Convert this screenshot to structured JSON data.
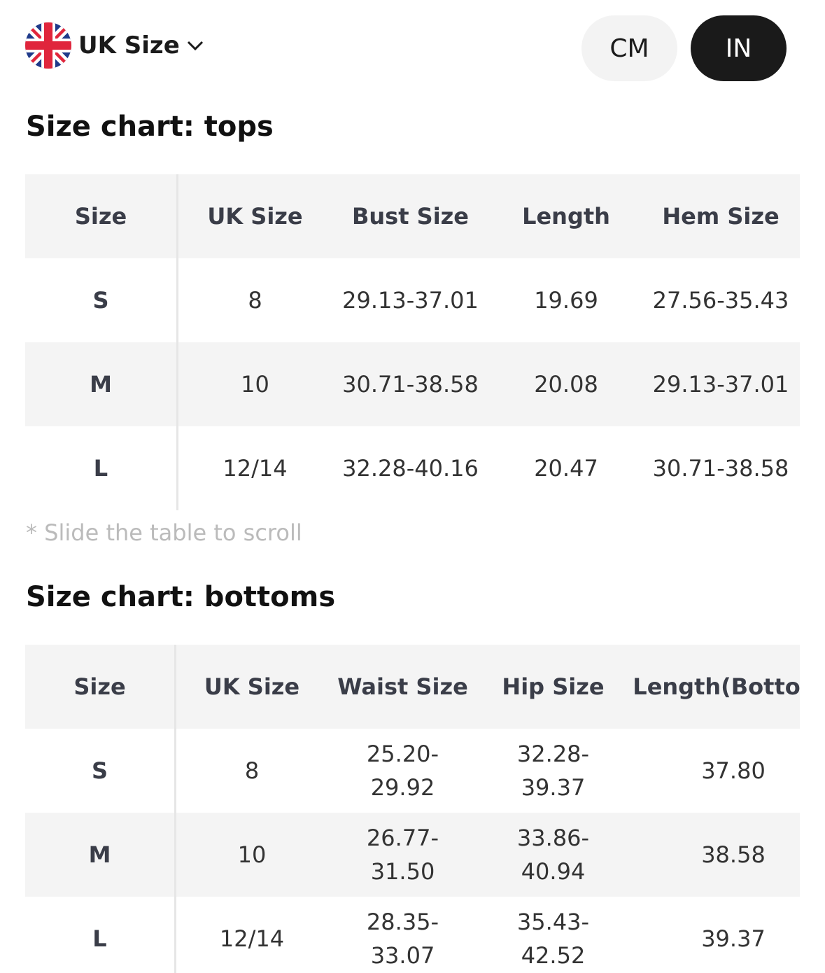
{
  "header": {
    "region_label": "UK Size",
    "region_icon": "uk-flag-icon",
    "units": [
      {
        "label": "CM",
        "active": false
      },
      {
        "label": "IN",
        "active": true
      }
    ],
    "active_color": "#1a1a1a"
  },
  "tops": {
    "title": "Size chart: tops",
    "columns": [
      "Size",
      "UK Size",
      "Bust Size",
      "Length",
      "Hem Size"
    ],
    "rows": [
      [
        "S",
        "8",
        "29.13-37.01",
        "19.69",
        "27.56-35.43"
      ],
      [
        "M",
        "10",
        "30.71-38.58",
        "20.08",
        "29.13-37.01"
      ],
      [
        "L",
        "12/14",
        "32.28-40.16",
        "20.47",
        "30.71-38.58"
      ]
    ]
  },
  "note": "* Slide the table to scroll",
  "bottoms": {
    "title": "Size chart: bottoms",
    "columns": [
      "Size",
      "UK Size",
      "Waist Size",
      "Hip Size",
      "Length(Bottom)"
    ],
    "rows": [
      [
        "S",
        "8",
        [
          "25.20-",
          "29.92"
        ],
        [
          "32.28-",
          "39.37"
        ],
        "37.80"
      ],
      [
        "M",
        "10",
        [
          "26.77-",
          "31.50"
        ],
        [
          "33.86-",
          "40.94"
        ],
        "38.58"
      ],
      [
        "L",
        "12/14",
        [
          "28.35-",
          "33.07"
        ],
        [
          "35.43-",
          "42.52"
        ],
        "39.37"
      ]
    ]
  }
}
